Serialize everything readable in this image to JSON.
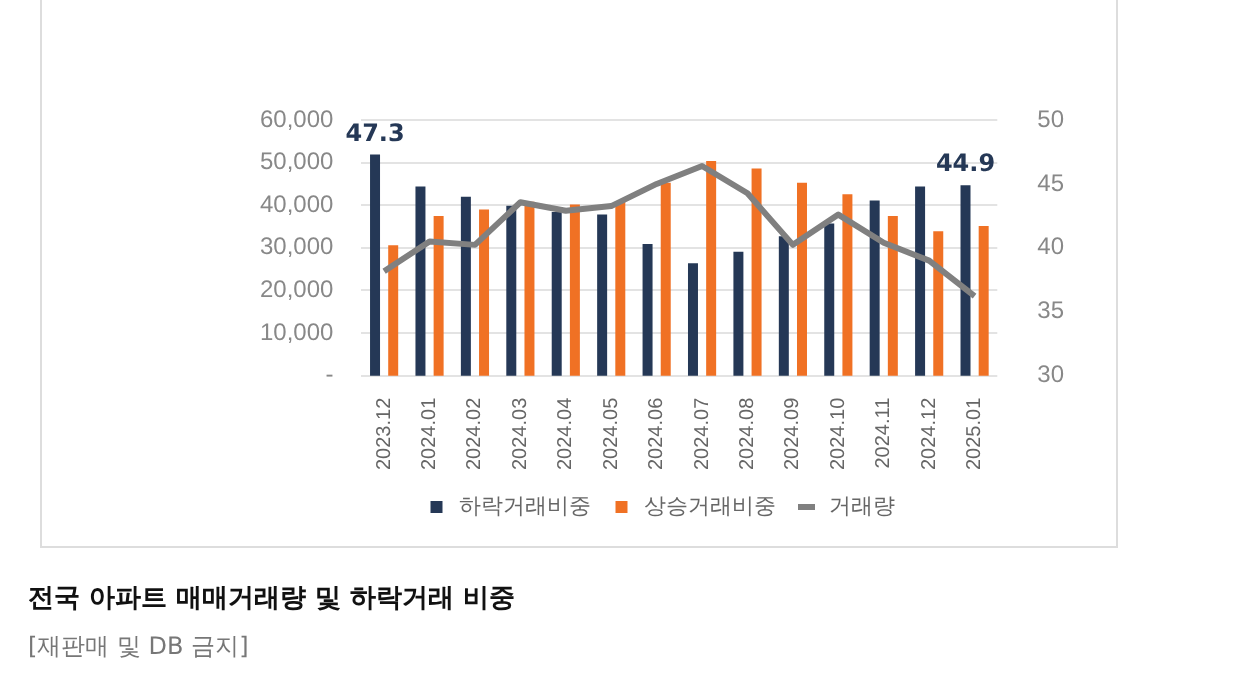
{
  "chart_data": {
    "type": "bar",
    "title": "전국 아파트 매매거래량 및 하락거래 비중",
    "annotations": [
      "[재판매 및 DB 금지]"
    ],
    "categories": [
      "2023.12",
      "2024.01",
      "2024.02",
      "2024.03",
      "2024.04",
      "2024.05",
      "2024.06",
      "2024.07",
      "2024.08",
      "2024.09",
      "2024.10",
      "2024.11",
      "2024.12",
      "2025.01"
    ],
    "series": [
      {
        "name": "하락거래비중",
        "axis": "y2",
        "color": "#253856",
        "values": [
          47.3,
          44.8,
          44.0,
          43.3,
          42.8,
          42.6,
          40.3,
          38.8,
          39.7,
          40.9,
          41.9,
          43.7,
          44.8,
          44.9
        ],
        "value_labels": [
          "47.3",
          null,
          null,
          null,
          null,
          null,
          null,
          null,
          null,
          null,
          null,
          null,
          null,
          "44.9"
        ]
      },
      {
        "name": "상승거래비중",
        "axis": "y2",
        "color": "#f07124",
        "values": [
          40.2,
          42.5,
          43.0,
          43.6,
          43.4,
          43.6,
          45.1,
          46.8,
          46.2,
          45.1,
          44.2,
          42.5,
          41.3,
          41.7
        ]
      },
      {
        "name": "거래량",
        "type": "line",
        "color": "#808080",
        "values": [
          24500,
          31500,
          30700,
          40700,
          38700,
          39800,
          45000,
          49200,
          42800,
          30700,
          37800,
          31200,
          27000,
          18700
        ]
      }
    ],
    "ylim": [
      0,
      60000
    ],
    "yticks": [
      {
        "value": 0,
        "label": "-"
      },
      {
        "value": 10000,
        "label": "10,000"
      },
      {
        "value": 20000,
        "label": "20,000"
      },
      {
        "value": 30000,
        "label": "30,000"
      },
      {
        "value": 40000,
        "label": "40,000"
      },
      {
        "value": 50000,
        "label": "50,000"
      },
      {
        "value": 60000,
        "label": "60,000"
      }
    ],
    "y2lim": [
      30,
      50
    ],
    "y2ticks": [
      30,
      35,
      40,
      45,
      50
    ],
    "grid": "y",
    "legend": "bottom",
    "marker": "none",
    "line_style": "solid"
  }
}
